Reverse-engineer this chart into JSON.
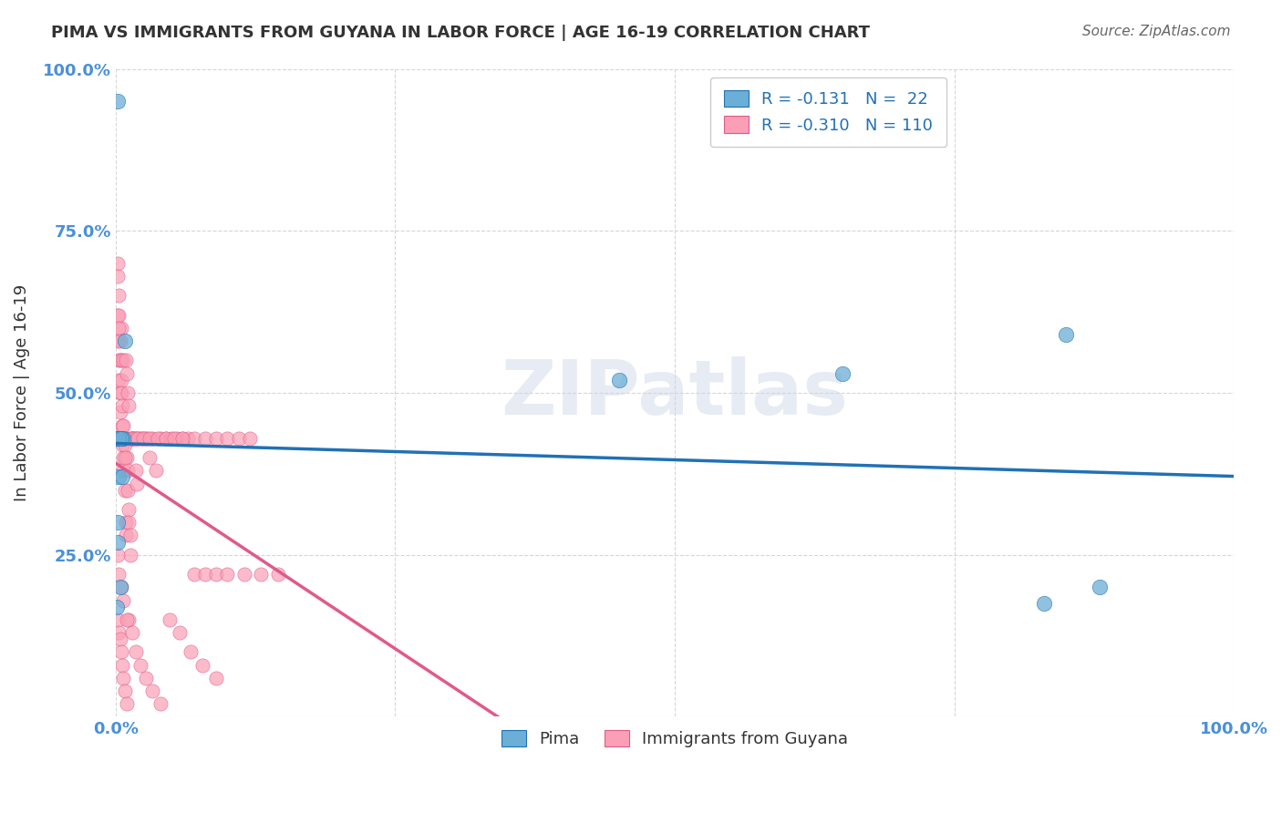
{
  "title": "PIMA VS IMMIGRANTS FROM GUYANA IN LABOR FORCE | AGE 16-19 CORRELATION CHART",
  "source": "Source: ZipAtlas.com",
  "xlabel": "",
  "ylabel": "In Labor Force | Age 16-19",
  "xlim": [
    0.0,
    1.0
  ],
  "ylim": [
    0.0,
    1.0
  ],
  "xticks": [
    0.0,
    0.25,
    0.5,
    0.75,
    1.0
  ],
  "yticks": [
    0.0,
    0.25,
    0.5,
    0.75,
    1.0
  ],
  "xticklabels": [
    "0.0%",
    "",
    "",
    "",
    "100.0%"
  ],
  "yticklabels": [
    "",
    "25.0%",
    "50.0%",
    "75.0%",
    "100.0%"
  ],
  "pima_color": "#6baed6",
  "guyana_color": "#fa9fb5",
  "pima_line_color": "#2171b5",
  "guyana_line_color": "#e05a8a",
  "guyana_line_dashed_color": "#d4a0b5",
  "legend_pima_label": "Pima",
  "legend_guyana_label": "Immigrants from Guyana",
  "legend_R_pima": "R = -0.131",
  "legend_N_pima": "N =  22",
  "legend_R_guyana": "R = -0.310",
  "legend_N_guyana": "N = 110",
  "watermark": "ZIPatlas",
  "pima_x": [
    0.002,
    0.008,
    0.003,
    0.001,
    0.005,
    0.004,
    0.003,
    0.006,
    0.002,
    0.001,
    0.45,
    0.65,
    0.85,
    0.88,
    0.83,
    0.007,
    0.003,
    0.002,
    0.002,
    0.004,
    0.003,
    0.005
  ],
  "pima_y": [
    0.95,
    0.58,
    0.43,
    0.43,
    0.43,
    0.43,
    0.37,
    0.37,
    0.3,
    0.17,
    0.52,
    0.53,
    0.59,
    0.2,
    0.175,
    0.43,
    0.43,
    0.43,
    0.27,
    0.2,
    0.43,
    0.43
  ],
  "guyana_x": [
    0.002,
    0.002,
    0.003,
    0.003,
    0.004,
    0.004,
    0.005,
    0.005,
    0.006,
    0.006,
    0.007,
    0.007,
    0.008,
    0.008,
    0.009,
    0.009,
    0.01,
    0.01,
    0.011,
    0.011,
    0.012,
    0.012,
    0.013,
    0.013,
    0.014,
    0.015,
    0.016,
    0.017,
    0.018,
    0.019,
    0.02,
    0.022,
    0.024,
    0.026,
    0.028,
    0.03,
    0.033,
    0.036,
    0.04,
    0.045,
    0.05,
    0.055,
    0.06,
    0.065,
    0.07,
    0.08,
    0.09,
    0.1,
    0.11,
    0.12,
    0.002,
    0.002,
    0.003,
    0.003,
    0.003,
    0.004,
    0.004,
    0.005,
    0.005,
    0.006,
    0.007,
    0.007,
    0.008,
    0.008,
    0.009,
    0.01,
    0.011,
    0.012,
    0.013,
    0.015,
    0.018,
    0.02,
    0.025,
    0.03,
    0.038,
    0.045,
    0.052,
    0.06,
    0.07,
    0.08,
    0.09,
    0.1,
    0.115,
    0.13,
    0.145,
    0.002,
    0.003,
    0.004,
    0.005,
    0.006,
    0.007,
    0.008,
    0.01,
    0.012,
    0.015,
    0.018,
    0.022,
    0.027,
    0.033,
    0.04,
    0.048,
    0.057,
    0.067,
    0.078,
    0.09,
    0.002,
    0.003,
    0.005,
    0.007,
    0.01
  ],
  "guyana_y": [
    0.62,
    0.58,
    0.55,
    0.52,
    0.5,
    0.47,
    0.6,
    0.55,
    0.45,
    0.42,
    0.4,
    0.38,
    0.35,
    0.43,
    0.3,
    0.28,
    0.43,
    0.4,
    0.38,
    0.35,
    0.32,
    0.3,
    0.28,
    0.25,
    0.43,
    0.43,
    0.43,
    0.43,
    0.38,
    0.36,
    0.43,
    0.43,
    0.43,
    0.43,
    0.43,
    0.4,
    0.43,
    0.38,
    0.43,
    0.43,
    0.43,
    0.43,
    0.43,
    0.43,
    0.43,
    0.43,
    0.43,
    0.43,
    0.43,
    0.43,
    0.7,
    0.68,
    0.65,
    0.62,
    0.6,
    0.58,
    0.55,
    0.52,
    0.5,
    0.48,
    0.45,
    0.55,
    0.42,
    0.4,
    0.55,
    0.53,
    0.5,
    0.48,
    0.43,
    0.43,
    0.43,
    0.43,
    0.43,
    0.43,
    0.43,
    0.43,
    0.43,
    0.43,
    0.22,
    0.22,
    0.22,
    0.22,
    0.22,
    0.22,
    0.22,
    0.15,
    0.13,
    0.12,
    0.1,
    0.08,
    0.06,
    0.04,
    0.02,
    0.15,
    0.13,
    0.1,
    0.08,
    0.06,
    0.04,
    0.02,
    0.15,
    0.13,
    0.1,
    0.08,
    0.06,
    0.25,
    0.22,
    0.2,
    0.18,
    0.15
  ]
}
